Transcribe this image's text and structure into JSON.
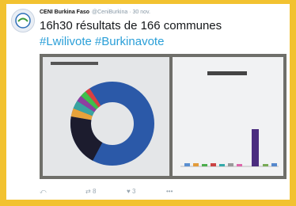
{
  "header": {
    "name": "CENI Burkina Faso",
    "handle": "@CeniBurkina · 30 nov."
  },
  "tweet": {
    "text": "16h30 résultats de 166 communes",
    "hashtags": [
      "#Lwilivote",
      "#Burkinavote"
    ]
  },
  "actions": {
    "retweets": 8,
    "likes": 3,
    "more": "•••"
  }
}
